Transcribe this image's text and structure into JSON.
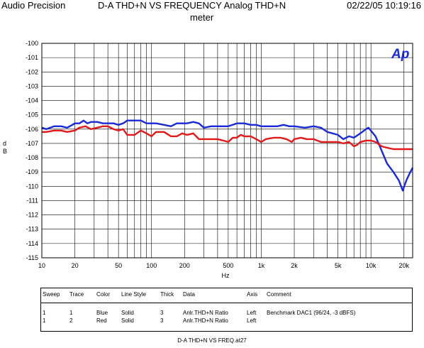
{
  "header": {
    "brand": "Audio Precision",
    "title_line1": "D-A THD+N VS FREQUENCY  Analog THD+N",
    "title_line2": "meter",
    "datetime": "02/22/05 10:19:16"
  },
  "logo_text": "Ap",
  "chart_data": {
    "type": "line",
    "title": "D-A THD+N VS FREQUENCY  Analog THD+N meter",
    "xlabel": "Hz",
    "ylabel": "d B",
    "x_scale": "log",
    "xlim": [
      10,
      24000
    ],
    "ylim": [
      -115,
      -100
    ],
    "grid": true,
    "y_ticks": [
      "-100",
      "-101",
      "-102",
      "-103",
      "-104",
      "-105",
      "-106",
      "-107",
      "-108",
      "-109",
      "-110",
      "-111",
      "-112",
      "-113",
      "-114",
      "-115"
    ],
    "x_ticks": [
      {
        "value": 10,
        "label": "10"
      },
      {
        "value": 20,
        "label": "20"
      },
      {
        "value": 50,
        "label": "50"
      },
      {
        "value": 100,
        "label": "100"
      },
      {
        "value": 200,
        "label": "200"
      },
      {
        "value": 500,
        "label": "500"
      },
      {
        "value": 1000,
        "label": "1k"
      },
      {
        "value": 2000,
        "label": "2k"
      },
      {
        "value": 5000,
        "label": "5k"
      },
      {
        "value": 10000,
        "label": "10k"
      },
      {
        "value": 20000,
        "label": "20k"
      }
    ],
    "series": [
      {
        "color": "#1a2bd6",
        "points": [
          [
            10,
            -105.9
          ],
          [
            11,
            -106.0
          ],
          [
            13,
            -105.8
          ],
          [
            15,
            -105.8
          ],
          [
            17,
            -105.9
          ],
          [
            19,
            -105.7
          ],
          [
            20,
            -105.6
          ],
          [
            22,
            -105.6
          ],
          [
            24,
            -105.4
          ],
          [
            26,
            -105.6
          ],
          [
            28,
            -105.5
          ],
          [
            32,
            -105.5
          ],
          [
            36,
            -105.6
          ],
          [
            40,
            -105.6
          ],
          [
            45,
            -105.6
          ],
          [
            50,
            -105.7
          ],
          [
            55,
            -105.6
          ],
          [
            60,
            -105.4
          ],
          [
            70,
            -105.4
          ],
          [
            80,
            -105.4
          ],
          [
            90,
            -105.6
          ],
          [
            100,
            -105.6
          ],
          [
            110,
            -105.6
          ],
          [
            130,
            -105.7
          ],
          [
            150,
            -105.8
          ],
          [
            170,
            -105.6
          ],
          [
            190,
            -105.6
          ],
          [
            210,
            -105.6
          ],
          [
            240,
            -105.5
          ],
          [
            270,
            -105.6
          ],
          [
            300,
            -105.9
          ],
          [
            350,
            -105.8
          ],
          [
            400,
            -105.8
          ],
          [
            450,
            -105.8
          ],
          [
            500,
            -105.8
          ],
          [
            600,
            -105.6
          ],
          [
            700,
            -105.6
          ],
          [
            800,
            -105.7
          ],
          [
            900,
            -105.7
          ],
          [
            1000,
            -105.8
          ],
          [
            1200,
            -105.8
          ],
          [
            1400,
            -105.8
          ],
          [
            1600,
            -105.7
          ],
          [
            1800,
            -105.8
          ],
          [
            2000,
            -105.8
          ],
          [
            2500,
            -105.9
          ],
          [
            3000,
            -105.8
          ],
          [
            3500,
            -105.9
          ],
          [
            4000,
            -106.2
          ],
          [
            5000,
            -106.4
          ],
          [
            5600,
            -106.7
          ],
          [
            6300,
            -106.5
          ],
          [
            7000,
            -106.6
          ],
          [
            8000,
            -106.3
          ],
          [
            9000,
            -106.0
          ],
          [
            9500,
            -105.9
          ],
          [
            11000,
            -106.5
          ],
          [
            12500,
            -107.5
          ],
          [
            14000,
            -108.4
          ],
          [
            16000,
            -109.0
          ],
          [
            18000,
            -109.6
          ],
          [
            19500,
            -110.3
          ],
          [
            21000,
            -109.6
          ],
          [
            22500,
            -109.1
          ],
          [
            24000,
            -108.7
          ]
        ]
      },
      {
        "color": "#e01a1a",
        "points": [
          [
            10,
            -106.2
          ],
          [
            11,
            -106.2
          ],
          [
            13,
            -106.1
          ],
          [
            15,
            -106.1
          ],
          [
            17,
            -106.2
          ],
          [
            20,
            -106.1
          ],
          [
            22,
            -105.9
          ],
          [
            25,
            -105.8
          ],
          [
            28,
            -106.0
          ],
          [
            32,
            -105.9
          ],
          [
            36,
            -105.8
          ],
          [
            40,
            -105.8
          ],
          [
            45,
            -106.0
          ],
          [
            50,
            -106.1
          ],
          [
            55,
            -106.0
          ],
          [
            60,
            -106.4
          ],
          [
            70,
            -106.4
          ],
          [
            80,
            -106.1
          ],
          [
            90,
            -106.3
          ],
          [
            100,
            -106.5
          ],
          [
            110,
            -106.2
          ],
          [
            130,
            -106.2
          ],
          [
            150,
            -106.5
          ],
          [
            170,
            -106.5
          ],
          [
            190,
            -106.3
          ],
          [
            210,
            -106.4
          ],
          [
            240,
            -106.3
          ],
          [
            270,
            -106.7
          ],
          [
            300,
            -106.7
          ],
          [
            350,
            -106.7
          ],
          [
            400,
            -106.7
          ],
          [
            450,
            -106.8
          ],
          [
            500,
            -106.9
          ],
          [
            550,
            -106.6
          ],
          [
            600,
            -106.6
          ],
          [
            650,
            -106.4
          ],
          [
            700,
            -106.5
          ],
          [
            800,
            -106.5
          ],
          [
            900,
            -106.7
          ],
          [
            1000,
            -106.9
          ],
          [
            1100,
            -106.7
          ],
          [
            1300,
            -106.6
          ],
          [
            1500,
            -106.6
          ],
          [
            1700,
            -106.7
          ],
          [
            1900,
            -106.9
          ],
          [
            2000,
            -106.7
          ],
          [
            2300,
            -106.6
          ],
          [
            2600,
            -106.7
          ],
          [
            3000,
            -106.7
          ],
          [
            3500,
            -106.9
          ],
          [
            4000,
            -106.9
          ],
          [
            4500,
            -106.9
          ],
          [
            5000,
            -106.9
          ],
          [
            5600,
            -107.0
          ],
          [
            6300,
            -106.9
          ],
          [
            7000,
            -107.2
          ],
          [
            7500,
            -107.1
          ],
          [
            8000,
            -106.9
          ],
          [
            9000,
            -106.8
          ],
          [
            10000,
            -106.8
          ],
          [
            11000,
            -106.9
          ],
          [
            12500,
            -107.2
          ],
          [
            14000,
            -107.3
          ],
          [
            16000,
            -107.4
          ],
          [
            18000,
            -107.4
          ],
          [
            20000,
            -107.4
          ],
          [
            22000,
            -107.4
          ],
          [
            24000,
            -107.4
          ]
        ]
      }
    ]
  },
  "legend_table": {
    "headers": [
      "Sweep",
      "Trace",
      "Color",
      "Line Style",
      "Thick",
      "Data",
      "Axis",
      "Comment"
    ],
    "rows": [
      [
        "1",
        "1",
        "Blue",
        "Solid",
        "3",
        "Anlr.THD+N Ratio",
        "Left",
        "Benchmark DAC1 (96/24, -3 dBFS)"
      ],
      [
        "1",
        "2",
        "Red",
        "Solid",
        "3",
        "Anlr.THD+N Ratio",
        "Left",
        ""
      ]
    ]
  },
  "footer": "D-A THD+N VS FREQ.at27"
}
